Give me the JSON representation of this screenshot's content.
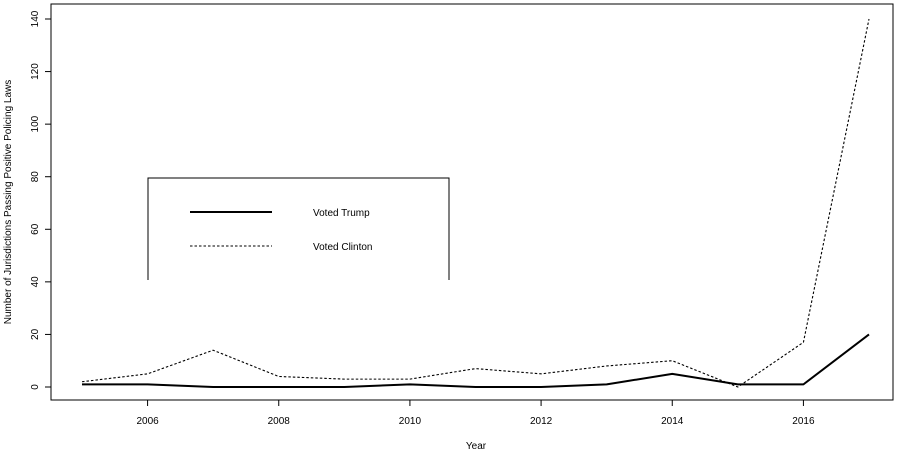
{
  "chart_data": {
    "type": "line",
    "title": "",
    "xlabel": "Year",
    "ylabel": "Number of Jurisdictions Passing Positive Policing Laws",
    "x": [
      2005,
      2006,
      2007,
      2008,
      2009,
      2010,
      2011,
      2012,
      2013,
      2014,
      2015,
      2016,
      2017
    ],
    "xlim": [
      2005,
      2017
    ],
    "ylim": [
      0,
      140
    ],
    "x_ticks": [
      2006,
      2008,
      2010,
      2012,
      2014,
      2016
    ],
    "y_ticks": [
      0,
      20,
      40,
      60,
      80,
      100,
      120,
      140
    ],
    "grid": false,
    "legend_position": "center-left",
    "series": [
      {
        "name": "Voted Trump",
        "style": "solid",
        "color": "#000000",
        "values": [
          1,
          1,
          0,
          0,
          0,
          1,
          0,
          0,
          1,
          5,
          1,
          1,
          20
        ]
      },
      {
        "name": "Voted Clinton",
        "style": "dotted",
        "color": "#000000",
        "values": [
          2,
          5,
          14,
          4,
          3,
          3,
          7,
          5,
          8,
          10,
          0,
          17,
          140
        ]
      }
    ]
  }
}
